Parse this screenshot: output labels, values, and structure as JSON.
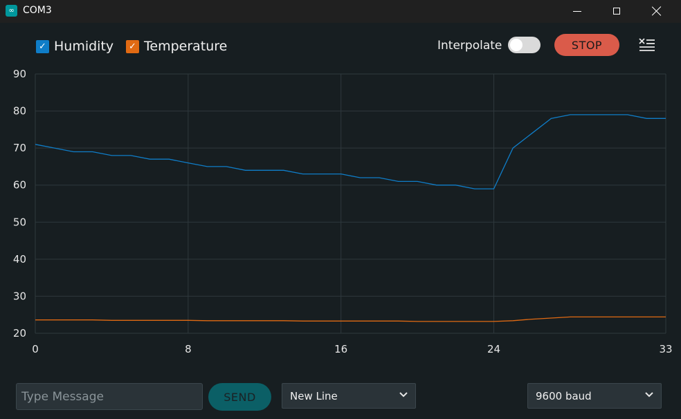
{
  "window": {
    "title": "COM3",
    "icon": "arduino-infinity-icon"
  },
  "toolbar": {
    "series": [
      {
        "label": "Humidity",
        "checked": true,
        "color": "#0f7dc8"
      },
      {
        "label": "Temperature",
        "checked": true,
        "color": "#e16a13"
      }
    ],
    "interpolate_label": "Interpolate",
    "interpolate_on": false,
    "stop_label": "STOP",
    "stop_color": "#da5b4a",
    "clear_icon": "clear-list-icon"
  },
  "chart_data": {
    "type": "line",
    "x_ticks": [
      "0",
      "8",
      "16",
      "24",
      "33"
    ],
    "y_ticks": [
      "90",
      "80",
      "70",
      "60",
      "50",
      "40",
      "30",
      "20"
    ],
    "xlim": [
      0,
      33
    ],
    "ylim": [
      20,
      90
    ],
    "grid": true,
    "series": [
      {
        "name": "Humidity",
        "color": "#0f7dc8",
        "x": [
          0,
          1,
          2,
          3,
          4,
          5,
          6,
          7,
          8,
          9,
          10,
          11,
          12,
          13,
          14,
          15,
          16,
          17,
          18,
          19,
          20,
          21,
          22,
          23,
          24,
          25,
          26,
          27,
          28,
          29,
          30,
          31,
          32,
          33
        ],
        "y": [
          71,
          70,
          69,
          69,
          68,
          68,
          67,
          67,
          66,
          65,
          65,
          64,
          64,
          64,
          63,
          63,
          63,
          62,
          62,
          61,
          61,
          60,
          60,
          59,
          59,
          70,
          74,
          78,
          79,
          79,
          79,
          79,
          78,
          78
        ]
      },
      {
        "name": "Temperature",
        "color": "#e16a13",
        "x": [
          0,
          1,
          2,
          3,
          4,
          5,
          6,
          7,
          8,
          9,
          10,
          11,
          12,
          13,
          14,
          15,
          16,
          17,
          18,
          19,
          20,
          21,
          22,
          23,
          24,
          25,
          26,
          27,
          28,
          29,
          30,
          31,
          32,
          33
        ],
        "y": [
          23.6,
          23.6,
          23.6,
          23.6,
          23.5,
          23.5,
          23.5,
          23.5,
          23.5,
          23.4,
          23.4,
          23.4,
          23.4,
          23.4,
          23.3,
          23.3,
          23.3,
          23.3,
          23.3,
          23.3,
          23.2,
          23.2,
          23.2,
          23.2,
          23.2,
          23.4,
          23.8,
          24.1,
          24.4,
          24.4,
          24.4,
          24.4,
          24.4,
          24.4
        ]
      }
    ]
  },
  "bottom": {
    "message_placeholder": "Type Message",
    "message_value": "",
    "send_label": "SEND",
    "line_ending": "New Line",
    "baud_rate": "9600 baud"
  }
}
